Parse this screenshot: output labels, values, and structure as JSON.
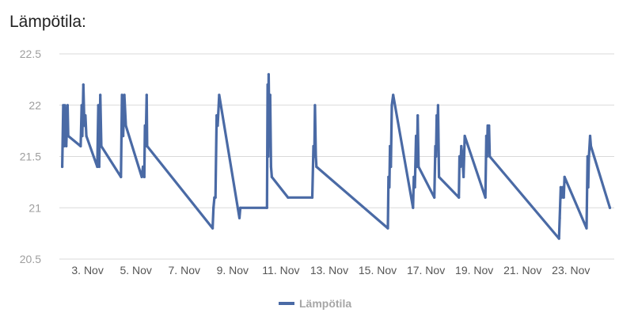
{
  "title": "Lämpötila:",
  "chart_data": {
    "type": "line",
    "title": "Lämpötila:",
    "xlabel": "",
    "ylabel": "",
    "xlim": [
      "2023-11-01T20:00",
      "2023-11-24T19:00"
    ],
    "ylim": [
      20.5,
      22.5
    ],
    "yticks": [
      20.5,
      21,
      21.5,
      22,
      22.5
    ],
    "xticks": [
      "2023-11-03",
      "2023-11-05",
      "2023-11-07",
      "2023-11-09",
      "2023-11-11",
      "2023-11-13",
      "2023-11-15",
      "2023-11-17",
      "2023-11-19",
      "2023-11-21",
      "2023-11-23"
    ],
    "xtick_labels": [
      "3. Nov",
      "5. Nov",
      "7. Nov",
      "9. Nov",
      "11. Nov",
      "13. Nov",
      "15. Nov",
      "17. Nov",
      "19. Nov",
      "21. Nov",
      "23. Nov"
    ],
    "grid": "horizontal",
    "legend_position": "bottom",
    "series": [
      {
        "name": "Lämpötila",
        "color": "#4a6aa5",
        "points": [
          [
            "2023-11-01T22:50",
            21.4
          ],
          [
            "2023-11-01T23:50",
            22.0
          ],
          [
            "2023-11-02T00:40",
            21.6
          ],
          [
            "2023-11-02T01:30",
            22.0
          ],
          [
            "2023-11-02T02:50",
            21.6
          ],
          [
            "2023-11-02T04:10",
            22.0
          ],
          [
            "2023-11-02T04:50",
            21.7
          ],
          [
            "2023-11-02T17:10",
            21.6
          ],
          [
            "2023-11-02T18:10",
            22.0
          ],
          [
            "2023-11-02T18:50",
            21.7
          ],
          [
            "2023-11-02T19:50",
            22.2
          ],
          [
            "2023-11-02T20:50",
            21.8
          ],
          [
            "2023-11-02T21:50",
            21.9
          ],
          [
            "2023-11-02T22:50",
            21.7
          ],
          [
            "2023-11-03T09:40",
            21.4
          ],
          [
            "2023-11-03T10:40",
            22.0
          ],
          [
            "2023-11-03T11:30",
            21.4
          ],
          [
            "2023-11-03T12:40",
            22.1
          ],
          [
            "2023-11-03T13:40",
            21.6
          ],
          [
            "2023-11-04T09:10",
            21.3
          ],
          [
            "2023-11-04T10:10",
            22.1
          ],
          [
            "2023-11-04T11:20",
            21.7
          ],
          [
            "2023-11-04T12:30",
            22.1
          ],
          [
            "2023-11-04T14:00",
            21.8
          ],
          [
            "2023-11-05T05:50",
            21.3
          ],
          [
            "2023-11-05T07:00",
            21.4
          ],
          [
            "2023-11-05T08:20",
            21.3
          ],
          [
            "2023-11-05T09:00",
            21.8
          ],
          [
            "2023-11-05T09:40",
            21.6
          ],
          [
            "2023-11-05T10:40",
            22.1
          ],
          [
            "2023-11-05T11:10",
            21.6
          ],
          [
            "2023-11-08T04:10",
            20.8
          ],
          [
            "2023-11-08T05:00",
            21.0
          ],
          [
            "2023-11-08T06:00",
            21.1
          ],
          [
            "2023-11-08T07:00",
            21.1
          ],
          [
            "2023-11-08T08:10",
            21.9
          ],
          [
            "2023-11-08T09:10",
            21.8
          ],
          [
            "2023-11-08T10:40",
            22.1
          ],
          [
            "2023-11-09T06:50",
            20.9
          ],
          [
            "2023-11-09T07:40",
            21.0
          ],
          [
            "2023-11-10T10:10",
            21.0
          ],
          [
            "2023-11-10T10:50",
            22.2
          ],
          [
            "2023-11-10T11:20",
            21.5
          ],
          [
            "2023-11-10T11:50",
            22.3
          ],
          [
            "2023-11-10T12:40",
            21.6
          ],
          [
            "2023-11-10T13:20",
            22.1
          ],
          [
            "2023-11-10T14:10",
            21.4
          ],
          [
            "2023-11-10T15:00",
            21.3
          ],
          [
            "2023-11-11T07:00",
            21.1
          ],
          [
            "2023-11-12T07:10",
            21.1
          ],
          [
            "2023-11-12T08:20",
            21.6
          ],
          [
            "2023-11-12T09:10",
            21.5
          ],
          [
            "2023-11-12T09:50",
            22.0
          ],
          [
            "2023-11-12T10:40",
            21.5
          ],
          [
            "2023-11-12T11:20",
            21.4
          ],
          [
            "2023-11-15T10:10",
            20.8
          ],
          [
            "2023-11-15T10:50",
            21.3
          ],
          [
            "2023-11-15T11:40",
            21.2
          ],
          [
            "2023-11-15T12:20",
            21.6
          ],
          [
            "2023-11-15T13:10",
            21.4
          ],
          [
            "2023-11-15T14:10",
            22.0
          ],
          [
            "2023-11-15T15:30",
            22.1
          ],
          [
            "2023-11-16T11:10",
            21.0
          ],
          [
            "2023-11-16T12:00",
            21.3
          ],
          [
            "2023-11-16T13:00",
            21.2
          ],
          [
            "2023-11-16T14:10",
            21.7
          ],
          [
            "2023-11-16T15:00",
            21.4
          ],
          [
            "2023-11-16T15:50",
            21.9
          ],
          [
            "2023-11-16T16:40",
            21.4
          ],
          [
            "2023-11-17T08:20",
            21.1
          ],
          [
            "2023-11-17T09:20",
            21.6
          ],
          [
            "2023-11-17T10:00",
            21.5
          ],
          [
            "2023-11-17T10:40",
            21.9
          ],
          [
            "2023-11-17T11:20",
            21.7
          ],
          [
            "2023-11-17T12:00",
            22.0
          ],
          [
            "2023-11-17T13:00",
            21.3
          ],
          [
            "2023-11-18T08:40",
            21.1
          ],
          [
            "2023-11-18T09:20",
            21.5
          ],
          [
            "2023-11-18T10:10",
            21.4
          ],
          [
            "2023-11-18T11:10",
            21.6
          ],
          [
            "2023-11-18T12:10",
            21.5
          ],
          [
            "2023-11-18T13:20",
            21.3
          ],
          [
            "2023-11-18T14:30",
            21.7
          ],
          [
            "2023-11-19T11:00",
            21.1
          ],
          [
            "2023-11-19T12:00",
            21.7
          ],
          [
            "2023-11-19T12:40",
            21.5
          ],
          [
            "2023-11-19T13:20",
            21.8
          ],
          [
            "2023-11-19T14:00",
            21.6
          ],
          [
            "2023-11-19T14:40",
            21.8
          ],
          [
            "2023-11-19T15:20",
            21.5
          ],
          [
            "2023-11-22T12:10",
            20.7
          ],
          [
            "2023-11-22T12:50",
            20.9
          ],
          [
            "2023-11-22T13:50",
            21.2
          ],
          [
            "2023-11-22T14:50",
            21.1
          ],
          [
            "2023-11-22T15:40",
            21.2
          ],
          [
            "2023-11-22T16:50",
            21.1
          ],
          [
            "2023-11-22T17:40",
            21.3
          ],
          [
            "2023-11-23T15:30",
            20.8
          ],
          [
            "2023-11-23T16:30",
            21.5
          ],
          [
            "2023-11-23T17:10",
            21.2
          ],
          [
            "2023-11-23T17:50",
            21.5
          ],
          [
            "2023-11-23T19:00",
            21.7
          ],
          [
            "2023-11-23T19:50",
            21.6
          ],
          [
            "2023-11-24T14:40",
            21.0
          ]
        ]
      }
    ]
  }
}
